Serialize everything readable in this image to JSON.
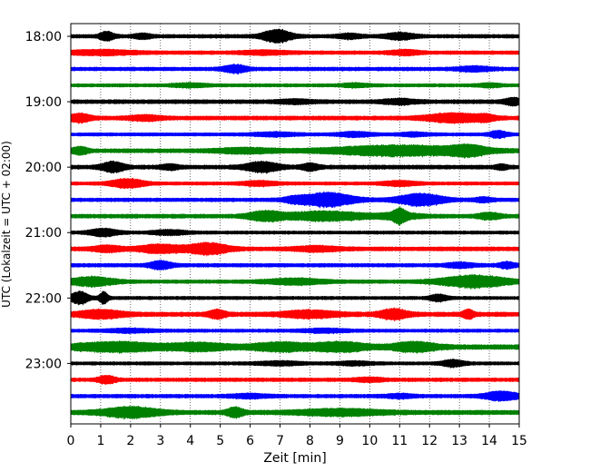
{
  "chart_data": {
    "type": "line",
    "title": "",
    "xlabel": "Zeit  [min]",
    "ylabel": "UTC (Lokalzeit = UTC + 02:00)",
    "xlim": [
      0,
      15
    ],
    "xticks": [
      0,
      1,
      2,
      3,
      4,
      5,
      6,
      7,
      8,
      9,
      10,
      11,
      12,
      13,
      14,
      15
    ],
    "yticks": [
      {
        "row": 0,
        "label": "18:00"
      },
      {
        "row": 4,
        "label": "19:00"
      },
      {
        "row": 8,
        "label": "20:00"
      },
      {
        "row": 12,
        "label": "21:00"
      },
      {
        "row": 16,
        "label": "22:00"
      },
      {
        "row": 20,
        "label": "23:00"
      }
    ],
    "grid": {
      "vertical": true,
      "style": "dotted"
    },
    "traces": [
      {
        "start": "18:00",
        "color": "#000000",
        "base": 2,
        "bursts": [
          [
            1.2,
            0.25,
            4
          ],
          [
            2.4,
            0.3,
            2
          ],
          [
            6.9,
            0.5,
            6
          ],
          [
            9.3,
            0.4,
            2
          ],
          [
            11.0,
            0.5,
            3
          ]
        ]
      },
      {
        "start": "18:15",
        "color": "#ff0000",
        "base": 2,
        "bursts": [
          [
            1.0,
            1.2,
            2
          ],
          [
            6.5,
            0.8,
            1.5
          ],
          [
            11.2,
            0.5,
            2
          ]
        ]
      },
      {
        "start": "18:30",
        "color": "#0000ff",
        "base": 2,
        "bursts": [
          [
            5.5,
            0.4,
            3.5
          ],
          [
            13.5,
            0.6,
            2
          ]
        ]
      },
      {
        "start": "18:45",
        "color": "#008000",
        "base": 1.8,
        "bursts": [
          [
            4.0,
            0.6,
            1.5
          ],
          [
            9.5,
            0.5,
            1.5
          ],
          [
            14.0,
            0.4,
            1.5
          ]
        ]
      },
      {
        "start": "19:00",
        "color": "#000000",
        "base": 2.2,
        "bursts": [
          [
            14.8,
            0.3,
            3
          ],
          [
            7.5,
            0.6,
            1.5
          ],
          [
            11.0,
            0.6,
            2
          ]
        ]
      },
      {
        "start": "19:15",
        "color": "#ff0000",
        "base": 2.2,
        "bursts": [
          [
            0.3,
            0.4,
            3.5
          ],
          [
            2.5,
            0.6,
            2
          ],
          [
            12.8,
            1.0,
            4
          ],
          [
            13.9,
            0.3,
            2
          ]
        ]
      },
      {
        "start": "19:30",
        "color": "#0000ff",
        "base": 1.8,
        "bursts": [
          [
            6.8,
            0.8,
            1.5
          ],
          [
            9.5,
            0.6,
            2
          ],
          [
            11.5,
            0.5,
            1.5
          ],
          [
            14.3,
            0.3,
            3
          ]
        ]
      },
      {
        "start": "19:45",
        "color": "#008000",
        "base": 2.2,
        "bursts": [
          [
            0.3,
            0.3,
            3
          ],
          [
            5.8,
            1.0,
            2
          ],
          [
            11.0,
            2.5,
            4.5
          ],
          [
            13.3,
            0.6,
            3.5
          ]
        ]
      },
      {
        "start": "20:00",
        "color": "#000000",
        "base": 2.2,
        "bursts": [
          [
            1.4,
            0.4,
            4.5
          ],
          [
            3.3,
            0.3,
            2
          ],
          [
            6.4,
            0.6,
            4.5
          ],
          [
            8.0,
            0.3,
            3
          ],
          [
            14.4,
            0.2,
            2
          ]
        ]
      },
      {
        "start": "20:15",
        "color": "#ff0000",
        "base": 1.8,
        "bursts": [
          [
            1.9,
            0.6,
            4
          ],
          [
            6.3,
            0.6,
            2
          ],
          [
            11.0,
            0.6,
            2
          ]
        ]
      },
      {
        "start": "20:30",
        "color": "#0000ff",
        "base": 2,
        "bursts": [
          [
            7.5,
            0.4,
            2
          ],
          [
            8.6,
            0.9,
            6.5
          ],
          [
            11.7,
            0.8,
            5.5
          ],
          [
            13.8,
            0.3,
            2
          ]
        ]
      },
      {
        "start": "20:45",
        "color": "#008000",
        "base": 2.2,
        "bursts": [
          [
            6.5,
            0.6,
            4
          ],
          [
            8.5,
            1.4,
            4
          ],
          [
            11.0,
            0.7,
            2.5
          ],
          [
            11.0,
            0.2,
            5
          ],
          [
            14.0,
            0.4,
            2.5
          ]
        ]
      },
      {
        "start": "21:00",
        "color": "#000000",
        "base": 1.8,
        "bursts": [
          [
            1.1,
            0.5,
            3.5
          ],
          [
            3.3,
            0.6,
            2
          ]
        ]
      },
      {
        "start": "21:15",
        "color": "#ff0000",
        "base": 2.2,
        "bursts": [
          [
            1.2,
            0.5,
            2.5
          ],
          [
            3.0,
            0.8,
            3.5
          ],
          [
            4.6,
            0.7,
            5
          ],
          [
            8.2,
            0.8,
            2
          ]
        ]
      },
      {
        "start": "21:30",
        "color": "#0000ff",
        "base": 2,
        "bursts": [
          [
            3.0,
            0.4,
            3.5
          ],
          [
            13.0,
            0.5,
            2
          ],
          [
            14.6,
            0.3,
            2.5
          ]
        ]
      },
      {
        "start": "21:45",
        "color": "#008000",
        "base": 2,
        "bursts": [
          [
            0.7,
            0.8,
            4
          ],
          [
            7.5,
            1.0,
            2.5
          ],
          [
            13.5,
            1.2,
            5.5
          ]
        ]
      },
      {
        "start": "22:00",
        "color": "#000000",
        "base": 1.8,
        "bursts": [
          [
            0.3,
            0.3,
            6
          ],
          [
            1.1,
            0.15,
            5.5
          ],
          [
            12.3,
            0.3,
            3
          ]
        ]
      },
      {
        "start": "22:15",
        "color": "#ff0000",
        "base": 2.4,
        "bursts": [
          [
            1.0,
            0.8,
            3.5
          ],
          [
            4.9,
            0.3,
            3.5
          ],
          [
            8.0,
            1.0,
            3
          ],
          [
            10.8,
            0.5,
            4.5
          ],
          [
            13.3,
            0.2,
            4
          ]
        ]
      },
      {
        "start": "22:30",
        "color": "#0000ff",
        "base": 1.8,
        "bursts": [
          [
            2.0,
            0.8,
            1.5
          ],
          [
            8.5,
            0.8,
            1.5
          ]
        ]
      },
      {
        "start": "22:45",
        "color": "#008000",
        "base": 2.6,
        "bursts": [
          [
            1.5,
            1.5,
            4
          ],
          [
            4.3,
            1.0,
            3
          ],
          [
            7.0,
            1.0,
            3.5
          ],
          [
            9.0,
            0.9,
            4
          ],
          [
            11.5,
            0.8,
            4
          ]
        ]
      },
      {
        "start": "23:00",
        "color": "#000000",
        "base": 1.8,
        "bursts": [
          [
            12.8,
            0.4,
            3
          ],
          [
            7.0,
            0.8,
            1.5
          ],
          [
            9.5,
            0.6,
            1.5
          ]
        ]
      },
      {
        "start": "23:15",
        "color": "#ff0000",
        "base": 2,
        "bursts": [
          [
            1.2,
            0.3,
            3.5
          ],
          [
            10.0,
            0.5,
            1.5
          ]
        ]
      },
      {
        "start": "23:30",
        "color": "#0000ff",
        "base": 2,
        "bursts": [
          [
            14.4,
            0.6,
            4
          ],
          [
            6.0,
            0.7,
            1.5
          ],
          [
            11.0,
            0.5,
            1.5
          ]
        ]
      },
      {
        "start": "23:45",
        "color": "#008000",
        "base": 2.4,
        "bursts": [
          [
            2.0,
            1.0,
            4.5
          ],
          [
            5.5,
            0.3,
            4
          ],
          [
            9.0,
            1.5,
            2.5
          ]
        ]
      }
    ]
  }
}
